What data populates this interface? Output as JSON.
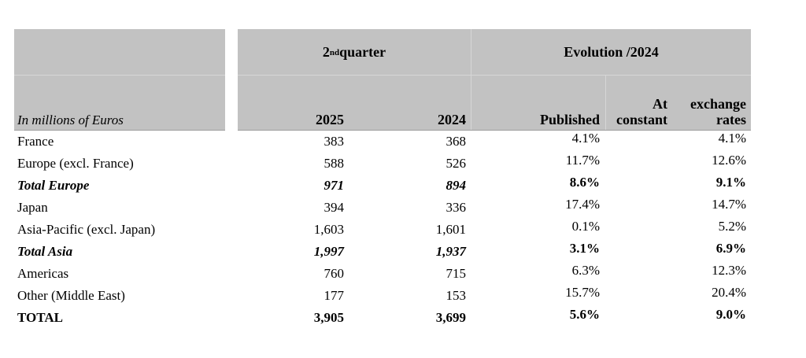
{
  "colors": {
    "header_bg": "#c2c2c2",
    "divider_light": "#d6d6d6",
    "header_bottom_edge": "#9e9e9e",
    "text": "#000000"
  },
  "header": {
    "unit_label": "In millions of Euros",
    "quarter_group": {
      "base": "2",
      "sup": "nd",
      "rest": " quarter"
    },
    "evolution_group": "Evolution /2024",
    "columns": {
      "y2025": "2025",
      "y2024": "2024",
      "published": "Published",
      "constant_line1": "At constant",
      "constant_line2": "exchange rates"
    }
  },
  "rows": [
    {
      "label": "France",
      "v2025": "383",
      "v2024": "368",
      "published": "4.1%",
      "constant": "4.1%"
    },
    {
      "label": "Europe (excl. France)",
      "v2025": "588",
      "v2024": "526",
      "published": "11.7%",
      "constant": "12.6%"
    },
    {
      "label": "Total Europe",
      "v2025": "971",
      "v2024": "894",
      "published": "8.6%",
      "constant": "9.1%"
    },
    {
      "label": "Japan",
      "v2025": "394",
      "v2024": "336",
      "published": "17.4%",
      "constant": "14.7%"
    },
    {
      "label": "Asia-Pacific (excl. Japan)",
      "v2025": "1,603",
      "v2024": "1,601",
      "published": "0.1%",
      "constant": "5.2%"
    },
    {
      "label": "Total Asia",
      "v2025": "1,997",
      "v2024": "1,937",
      "published": "3.1%",
      "constant": "6.9%"
    },
    {
      "label": "Americas",
      "v2025": "760",
      "v2024": "715",
      "published": "6.3%",
      "constant": "12.3%"
    },
    {
      "label": "Other (Middle East)",
      "v2025": "177",
      "v2024": "153",
      "published": "15.7%",
      "constant": "20.4%"
    },
    {
      "label": "TOTAL",
      "v2025": "3,905",
      "v2024": "3,699",
      "published": "5.6%",
      "constant": "9.0%"
    }
  ]
}
